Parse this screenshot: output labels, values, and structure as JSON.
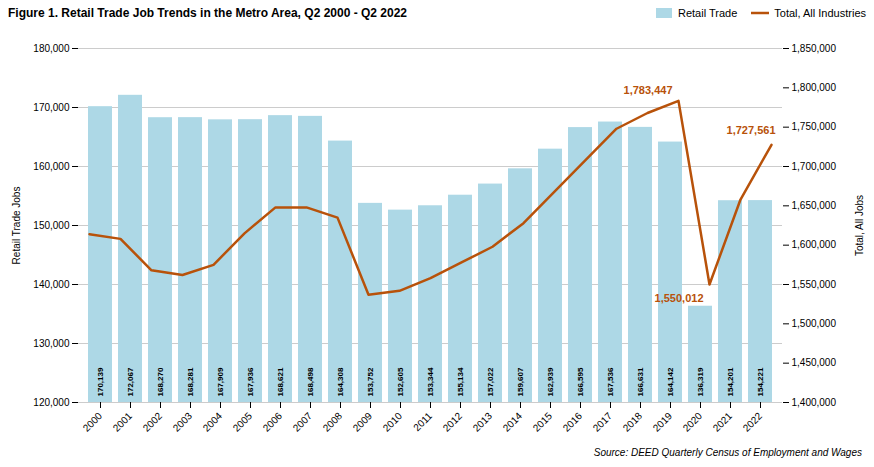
{
  "chart_data": {
    "type": "bar",
    "title": "Figure 1. Retail Trade Job Trends in the Metro Area, Q2 2000 - Q2 2022",
    "categories": [
      "2000",
      "2001",
      "2002",
      "2003",
      "2004",
      "2005",
      "2006",
      "2007",
      "2008",
      "2009",
      "2010",
      "2011",
      "2012",
      "2013",
      "2014",
      "2015",
      "2016",
      "2017",
      "2018",
      "2019",
      "2020",
      "2021",
      "2022"
    ],
    "series": [
      {
        "name": "Retail Trade",
        "type": "bar",
        "color": "#add8e6",
        "values": [
          170139,
          172067,
          168270,
          168281,
          167909,
          167936,
          168621,
          168498,
          164308,
          153752,
          152605,
          153344,
          155134,
          157022,
          159607,
          162939,
          166595,
          167536,
          166631,
          164142,
          136319,
          154201,
          154221
        ],
        "value_labels": [
          "170,139",
          "172,067",
          "168,270",
          "168,281",
          "167,909",
          "167,936",
          "168,621",
          "168,498",
          "164,308",
          "153,752",
          "152,605",
          "153,344",
          "155,134",
          "157,022",
          "159,607",
          "162,939",
          "166,595",
          "167,536",
          "166,631",
          "164,142",
          "136,319",
          "154,201",
          "154,221"
        ]
      },
      {
        "name": "Total, All Industries",
        "type": "line",
        "color": "#b8520a",
        "axis": "y2",
        "values": [
          1614000,
          1608000,
          1568000,
          1562000,
          1575000,
          1615000,
          1648000,
          1648000,
          1635000,
          1537000,
          1542000,
          1558000,
          1578000,
          1598000,
          1628000,
          1668000,
          1708000,
          1748000,
          1768000,
          1783447,
          1550012,
          1658000,
          1727561
        ]
      }
    ],
    "ylabel": "Retail Trade Jobs",
    "y2label": "Total, All Jobs",
    "ylim": [
      120000,
      180000
    ],
    "yticks": [
      {
        "value": 120000,
        "label": "120,000"
      },
      {
        "value": 130000,
        "label": "130,000"
      },
      {
        "value": 140000,
        "label": "140,000"
      },
      {
        "value": 150000,
        "label": "150,000"
      },
      {
        "value": 160000,
        "label": "160,000"
      },
      {
        "value": 170000,
        "label": "170,000"
      },
      {
        "value": 180000,
        "label": "180,000"
      }
    ],
    "y2lim": [
      1400000,
      1850000
    ],
    "y2ticks": [
      {
        "value": 1400000,
        "label": "1,400,000"
      },
      {
        "value": 1450000,
        "label": "1,450,000"
      },
      {
        "value": 1500000,
        "label": "1,500,000"
      },
      {
        "value": 1550000,
        "label": "1,550,000"
      },
      {
        "value": 1600000,
        "label": "1,600,000"
      },
      {
        "value": 1650000,
        "label": "1,650,000"
      },
      {
        "value": 1700000,
        "label": "1,700,000"
      },
      {
        "value": 1750000,
        "label": "1,750,000"
      },
      {
        "value": 1800000,
        "label": "1,800,000"
      },
      {
        "value": 1850000,
        "label": "1,850,000"
      }
    ],
    "annotations": [
      {
        "text": "1,783,447",
        "x": "2019",
        "y": 1783447,
        "axis": "y2"
      },
      {
        "text": "1,550,012",
        "x": "2020",
        "y": 1550012,
        "axis": "y2"
      },
      {
        "text": "1,727,561",
        "x": "2022",
        "y": 1727561,
        "axis": "y2"
      }
    ],
    "source": "Source: DEED Quarterly Census of Employment and Wages",
    "data_labels": true,
    "grid": true,
    "legend": "upper right"
  }
}
